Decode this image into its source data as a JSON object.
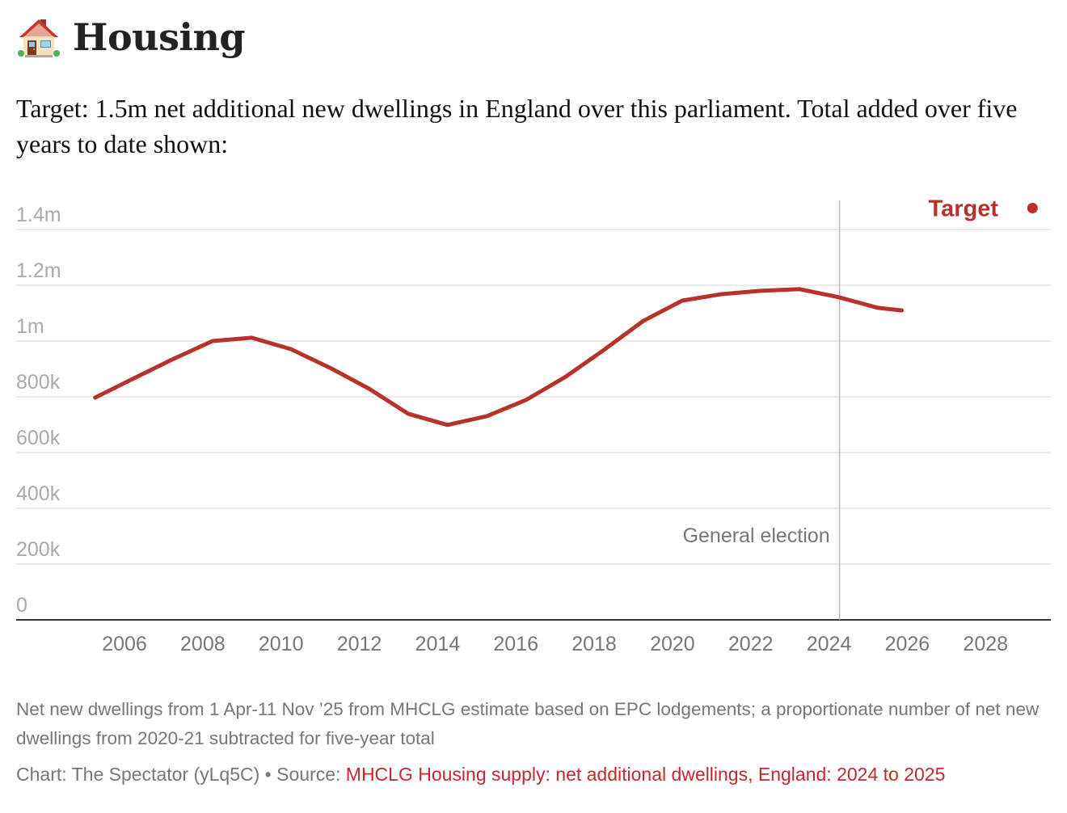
{
  "header": {
    "icon": "house-icon",
    "title": "Housing",
    "subtitle": "Target: 1.5m net additional new dwellings in England over this parliament. Total added over five years to date shown:"
  },
  "chart_data": {
    "type": "line",
    "title": "Housing",
    "xlabel": "",
    "ylabel": "",
    "xlim": [
      2004.5,
      2029.6
    ],
    "ylim": [
      0,
      1400000
    ],
    "grid": true,
    "y_ticks": [
      {
        "value": 0,
        "label": "0"
      },
      {
        "value": 200000,
        "label": "200k"
      },
      {
        "value": 400000,
        "label": "400k"
      },
      {
        "value": 600000,
        "label": "600k"
      },
      {
        "value": 800000,
        "label": "800k"
      },
      {
        "value": 1000000,
        "label": "1m"
      },
      {
        "value": 1200000,
        "label": "1.2m"
      },
      {
        "value": 1400000,
        "label": "1.4m"
      }
    ],
    "x_ticks": [
      {
        "value": 2006,
        "label": "2006"
      },
      {
        "value": 2008,
        "label": "2008"
      },
      {
        "value": 2010,
        "label": "2010"
      },
      {
        "value": 2012,
        "label": "2012"
      },
      {
        "value": 2014,
        "label": "2014"
      },
      {
        "value": 2016,
        "label": "2016"
      },
      {
        "value": 2018,
        "label": "2018"
      },
      {
        "value": 2020,
        "label": "2020"
      },
      {
        "value": 2022,
        "label": "2022"
      },
      {
        "value": 2024,
        "label": "2024"
      },
      {
        "value": 2026,
        "label": "2026"
      },
      {
        "value": 2028,
        "label": "2028"
      }
    ],
    "series": [
      {
        "name": "Net additional dwellings, five-year total",
        "color": "#b8312a",
        "x": [
          2005.25,
          2006.25,
          2007.25,
          2008.25,
          2009.25,
          2010.25,
          2011.25,
          2012.25,
          2013.25,
          2014.25,
          2015.25,
          2016.25,
          2017.25,
          2018.25,
          2019.25,
          2020.25,
          2021.25,
          2022.25,
          2023.25,
          2024.25,
          2025.25,
          2025.86
        ],
        "values": [
          797000,
          867000,
          936000,
          1000000,
          1012000,
          971000,
          904000,
          829000,
          739000,
          699000,
          730000,
          788000,
          870000,
          968000,
          1072000,
          1145000,
          1168000,
          1180000,
          1186000,
          1157000,
          1119000,
          1110000
        ]
      }
    ],
    "target": {
      "label": "Target",
      "x": 2029.2,
      "value": 1500000,
      "color": "#b8312a"
    },
    "annotations": [
      {
        "type": "vertical-line",
        "x": 2024.27,
        "label": "General election"
      }
    ]
  },
  "notes": "Net new dwellings from 1 Apr-11 Nov ’25 from MHCLG estimate based on EPC lodgements; a proportionate number of net new dwellings from 2020-21 subtracted for five-year total",
  "credit": {
    "chart_by": "Chart: The Spectator (yLq5C)",
    "separator": " • ",
    "source_prefix": "Source: ",
    "source_link": "MHCLG Housing supply: net additional dwellings, England: 2024 to 2025"
  }
}
